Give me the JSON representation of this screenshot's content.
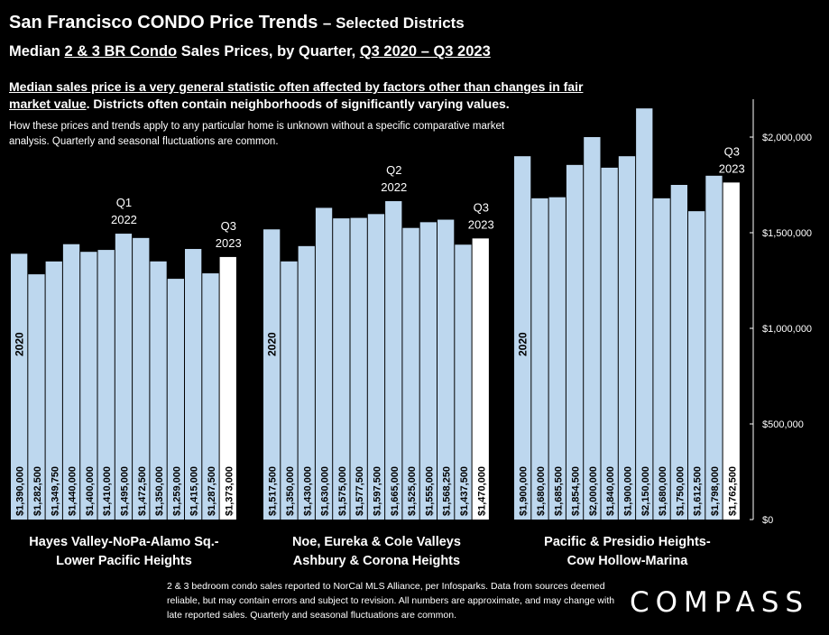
{
  "header": {
    "title_main": "San Francisco CONDO Price Trends",
    "title_sub": "– Selected Districts",
    "subtitle_pre": "Median ",
    "subtitle_u1": "2 & 3 BR Condo",
    "subtitle_mid": " Sales Prices, by Quarter, ",
    "subtitle_u2": "Q3 2020 – Q3 2023",
    "note_underlined": "Median sales price is a very general statistic often affected by factors other than changes in fair market value",
    "note_rest": ". Districts often contain neighborhoods of significantly varying values.",
    "note2": "How these prices and trends apply to any particular home is unknown without a specific comparative market analysis. Quarterly and seasonal fluctuations are common."
  },
  "footnote": "2 & 3 bedroom condo sales reported to NorCal MLS Alliance, per Infosparks. Data from sources deemed reliable, but may contain errors and subject to revision. All numbers are approximate, and may change with late reported sales. Quarterly and seasonal fluctuations are common.",
  "logo": "COMPASS",
  "colors": {
    "bar": "#bdd7ee",
    "highlight": "#ffffff",
    "background": "#000000",
    "text": "#ffffff"
  },
  "chart_data": {
    "type": "bar",
    "ylim": [
      0,
      2250000
    ],
    "y_ticks": [
      0,
      500000,
      1000000,
      1500000,
      2000000
    ],
    "y_tick_labels": [
      "$0",
      "$500,000",
      "$1,000,000",
      "$1,500,000",
      "$2,000,000"
    ],
    "y_axis_position": "right",
    "grid": false,
    "groups": [
      {
        "label_line1": "Hayes Valley-NoPa-Alamo Sq.-",
        "label_line2": "Lower Pacific Heights",
        "start_label": "2020",
        "values": [
          1390000,
          1282500,
          1349750,
          1440000,
          1400000,
          1410000,
          1495000,
          1472500,
          1350000,
          1259000,
          1415000,
          1287500,
          1373000
        ],
        "value_labels": [
          "$1,390,000",
          "$1,282,500",
          "$1,349,750",
          "$1,440,000",
          "$1,400,000",
          "$1,410,000",
          "$1,495,000",
          "$1,472,500",
          "$1,350,000",
          "$1,259,000",
          "$1,415,000",
          "$1,287,500",
          "$1,373,000"
        ],
        "annotations": [
          {
            "index": 6,
            "line1": "Q1",
            "line2": "2022"
          },
          {
            "index": 12,
            "line1": "Q3",
            "line2": "2023"
          }
        ]
      },
      {
        "label_line1": "Noe, Eureka & Cole Valleys",
        "label_line2": "Ashbury & Corona Heights",
        "start_label": "2020",
        "values": [
          1517500,
          1350000,
          1430000,
          1630000,
          1575000,
          1577500,
          1597500,
          1665000,
          1525000,
          1555000,
          1568250,
          1437500,
          1470000
        ],
        "value_labels": [
          "$1,517,500",
          "$1,350,000",
          "$1,430,000",
          "$1,630,000",
          "$1,575,000",
          "$1,577,500",
          "$1,597,500",
          "$1,665,000",
          "$1,525,000",
          "$1,555,000",
          "$1,568,250",
          "$1,437,500",
          "$1,470,000"
        ],
        "annotations": [
          {
            "index": 7,
            "line1": "Q2",
            "line2": "2022"
          },
          {
            "index": 12,
            "line1": "Q3",
            "line2": "2023"
          }
        ]
      },
      {
        "label_line1": "Pacific & Presidio Heights-",
        "label_line2": "Cow Hollow-Marina",
        "start_label": "2020",
        "values": [
          1900000,
          1680000,
          1685500,
          1854500,
          2000000,
          1840000,
          1900000,
          2150000,
          1680000,
          1750000,
          1612500,
          1798000,
          1762500
        ],
        "value_labels": [
          "$1,900,000",
          "$1,680,000",
          "$1,685,500",
          "$1,854,500",
          "$2,000,000",
          "$1,840,000",
          "$1,900,000",
          "$2,150,000",
          "$1,680,000",
          "$1,750,000",
          "$1,612,500",
          "$1,798,000",
          "$1,762,500"
        ],
        "annotations": [
          {
            "index": 7,
            "line1": "Q2",
            "line2": "2022"
          },
          {
            "index": 12,
            "line1": "Q3",
            "line2": "2023"
          }
        ]
      }
    ]
  }
}
